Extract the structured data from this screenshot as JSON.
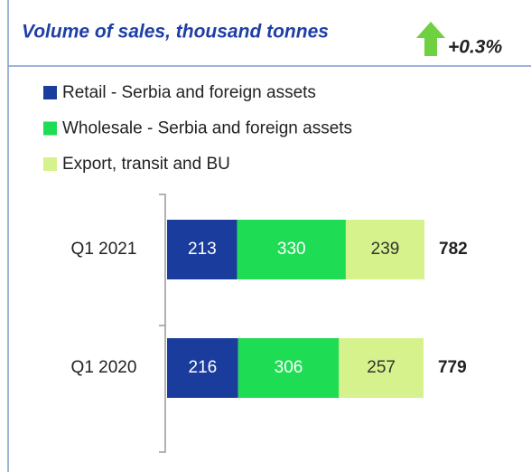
{
  "chart_data": {
    "type": "stacked-bar-horizontal",
    "title": "Volume of sales, thousand tonnes",
    "annotation": "+0.3%",
    "categories": [
      "Q1 2021",
      "Q1 2020"
    ],
    "series": [
      {
        "name": "Retail - Serbia and foreign assets",
        "color": "#1a3c9c",
        "values": [
          213,
          216
        ]
      },
      {
        "name": "Wholesale - Serbia and foreign assets",
        "color": "#1fdc55",
        "values": [
          330,
          306
        ]
      },
      {
        "name": "Export, transit and BU",
        "color": "#d6f28c",
        "values": [
          239,
          257
        ]
      }
    ],
    "totals": [
      782,
      779
    ],
    "legend": "top-left"
  }
}
